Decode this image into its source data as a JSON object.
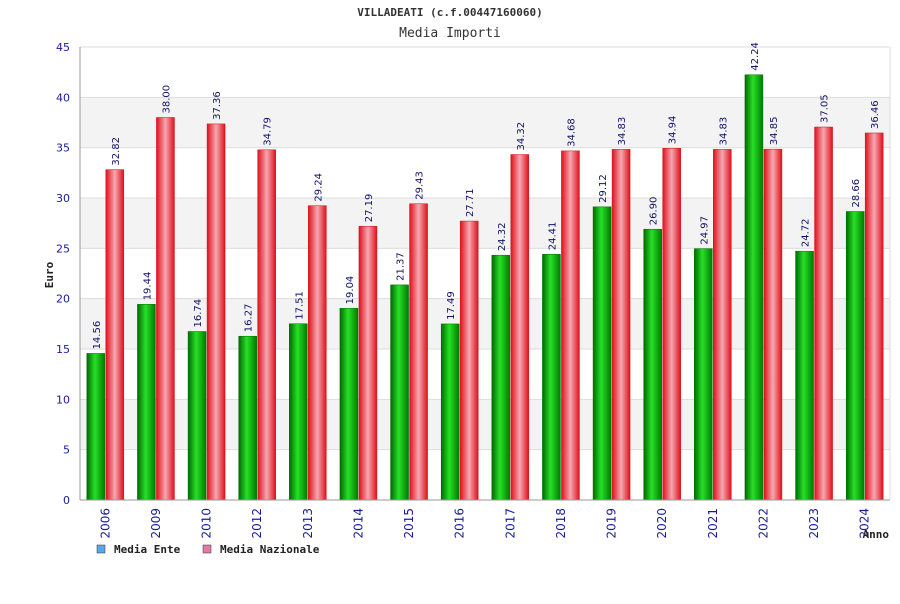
{
  "chart_data": {
    "type": "bar",
    "title": "VILLADEATI (c.f.00447160060)",
    "subtitle": "Media Importi",
    "xlabel": "Anno",
    "ylabel": "Euro",
    "ylim": [
      0,
      45
    ],
    "yticks": [
      0,
      5,
      10,
      15,
      20,
      25,
      30,
      35,
      40,
      45
    ],
    "grid": true,
    "categories": [
      "2006",
      "2009",
      "2010",
      "2012",
      "2013",
      "2014",
      "2015",
      "2016",
      "2017",
      "2018",
      "2019",
      "2020",
      "2021",
      "2022",
      "2023",
      "2024"
    ],
    "series": [
      {
        "name": "Media Ente",
        "color": "#00b400",
        "legend_color": "#5da5e8",
        "values": [
          14.56,
          19.44,
          16.74,
          16.27,
          17.51,
          19.04,
          21.37,
          17.49,
          24.32,
          24.41,
          29.12,
          26.9,
          24.97,
          42.24,
          24.72,
          28.66
        ],
        "value_labels": [
          "14.56",
          "19.44",
          "16.74",
          "16.27",
          "17.51",
          "19.04",
          "21.37",
          "17.49",
          "24.32",
          "24.41",
          "29.12",
          "26.90",
          "24.97",
          "42.24",
          "24.72",
          "28.66"
        ]
      },
      {
        "name": "Media Nazionale",
        "color": "#e8141e",
        "legend_color": "#e07aa6",
        "values": [
          32.82,
          38.0,
          37.36,
          34.79,
          29.24,
          27.19,
          29.43,
          27.71,
          34.32,
          34.68,
          34.83,
          34.94,
          34.83,
          34.85,
          37.05,
          36.46
        ],
        "value_labels": [
          "32.82",
          "38.00",
          "37.36",
          "34.79",
          "29.24",
          "27.19",
          "29.43",
          "27.71",
          "34.32",
          "34.68",
          "34.83",
          "34.94",
          "34.83",
          "34.85",
          "37.05",
          "36.46"
        ]
      }
    ]
  }
}
